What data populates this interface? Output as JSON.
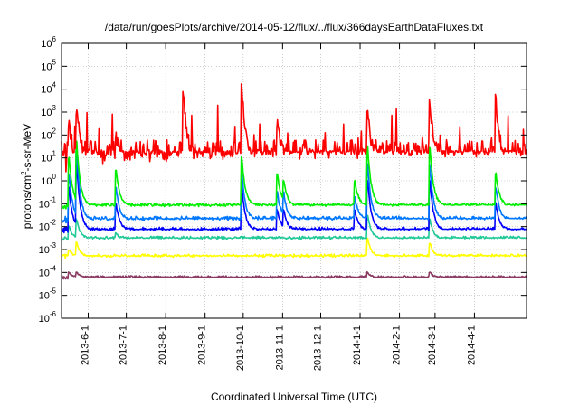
{
  "chart_data": {
    "type": "line",
    "title": "/data/run/goesPlots/archive/2014-05-12/flux/../flux/366daysEarthDataFluxes.txt",
    "xlabel": "Coordinated Universal Time (UTC)",
    "ylabel": {
      "prefix": "protons/cm",
      "sup": "2",
      "suffix": "-s-sr-MeV"
    },
    "x_range": [
      "2013-05-11",
      "2014-05-12"
    ],
    "x_ticks": [
      {
        "date": "2013-06-01",
        "label": "2013-6-1"
      },
      {
        "date": "2013-07-01",
        "label": "2013-7-1"
      },
      {
        "date": "2013-08-01",
        "label": "2013-8-1"
      },
      {
        "date": "2013-09-01",
        "label": "2013-9-1"
      },
      {
        "date": "2013-10-01",
        "label": "2013-10-1"
      },
      {
        "date": "2013-11-01",
        "label": "2013-11-1"
      },
      {
        "date": "2013-12-01",
        "label": "2013-12-1"
      },
      {
        "date": "2014-01-01",
        "label": "2014-1-1"
      },
      {
        "date": "2014-02-01",
        "label": "2014-2-1"
      },
      {
        "date": "2014-03-01",
        "label": "2014-3-1"
      },
      {
        "date": "2014-04-01",
        "label": "2014-4-1"
      }
    ],
    "y_scale": "log",
    "ylim": [
      1e-06,
      1000000.0
    ],
    "y_ticks": [
      {
        "value": 1e-06,
        "base": "10",
        "exp": "-6"
      },
      {
        "value": 1e-05,
        "base": "10",
        "exp": "-5"
      },
      {
        "value": 0.0001,
        "base": "10",
        "exp": "-4"
      },
      {
        "value": 0.001,
        "base": "10",
        "exp": "-3"
      },
      {
        "value": 0.01,
        "base": "10",
        "exp": "-2"
      },
      {
        "value": 0.1,
        "base": "10",
        "exp": "-1"
      },
      {
        "value": 1.0,
        "base": "10",
        "exp": "0"
      },
      {
        "value": 10.0,
        "base": "10",
        "exp": "1"
      },
      {
        "value": 100.0,
        "base": "10",
        "exp": "2"
      },
      {
        "value": 1000.0,
        "base": "10",
        "exp": "3"
      },
      {
        "value": 10000.0,
        "base": "10",
        "exp": "4"
      },
      {
        "value": 100000.0,
        "base": "10",
        "exp": "5"
      },
      {
        "value": 1000000.0,
        "base": "10",
        "exp": "6"
      }
    ],
    "grid": true,
    "series": [
      {
        "color": "#8b3a62",
        "baseline": 6e-05,
        "spread": 0.15,
        "events": [
          {
            "date": "2013-05-17",
            "peak": 0.0001
          },
          {
            "date": "2013-05-23",
            "peak": 0.0001
          },
          {
            "date": "2014-01-07",
            "peak": 0.0001
          },
          {
            "date": "2014-02-25",
            "peak": 0.0001
          }
        ]
      },
      {
        "color": "#ffff00",
        "baseline": 0.0005,
        "spread": 0.2,
        "events": [
          {
            "date": "2013-05-17",
            "peak": 0.001
          },
          {
            "date": "2013-05-23",
            "peak": 0.002
          },
          {
            "date": "2014-01-07",
            "peak": 0.003
          },
          {
            "date": "2014-02-25",
            "peak": 0.002
          }
        ]
      },
      {
        "color": "#20c997",
        "baseline": 0.003,
        "spread": 0.2,
        "events": [
          {
            "date": "2013-05-17",
            "peak": 0.01
          },
          {
            "date": "2013-05-23",
            "peak": 0.02
          },
          {
            "date": "2013-06-23",
            "peak": 0.005
          },
          {
            "date": "2014-01-07",
            "peak": 0.03
          },
          {
            "date": "2014-02-25",
            "peak": 0.02
          }
        ]
      },
      {
        "color": "#0000ff",
        "baseline": 0.007,
        "spread": 0.25,
        "events": [
          {
            "date": "2013-05-17",
            "peak": 0.5
          },
          {
            "date": "2013-05-23",
            "peak": 5
          },
          {
            "date": "2013-06-23",
            "peak": 0.1
          },
          {
            "date": "2013-09-30",
            "peak": 0.5
          },
          {
            "date": "2013-10-28",
            "peak": 0.05
          },
          {
            "date": "2013-11-02",
            "peak": 0.05
          },
          {
            "date": "2013-12-28",
            "peak": 0.05
          },
          {
            "date": "2014-01-07",
            "peak": 1
          },
          {
            "date": "2014-02-25",
            "peak": 1
          },
          {
            "date": "2014-04-18",
            "peak": 0.1
          }
        ]
      },
      {
        "color": "#0077ff",
        "baseline": 0.02,
        "spread": 0.3,
        "events": [
          {
            "date": "2013-05-17",
            "peak": 2
          },
          {
            "date": "2013-05-23",
            "peak": 20
          },
          {
            "date": "2013-06-23",
            "peak": 0.5
          },
          {
            "date": "2013-09-30",
            "peak": 2
          },
          {
            "date": "2013-10-28",
            "peak": 0.3
          },
          {
            "date": "2013-11-02",
            "peak": 0.3
          },
          {
            "date": "2013-12-28",
            "peak": 0.2
          },
          {
            "date": "2014-01-07",
            "peak": 5
          },
          {
            "date": "2014-02-25",
            "peak": 5
          },
          {
            "date": "2014-04-18",
            "peak": 0.5
          }
        ]
      },
      {
        "color": "#00ee00",
        "baseline": 0.08,
        "spread": 0.25,
        "events": [
          {
            "date": "2013-05-17",
            "peak": 10
          },
          {
            "date": "2013-05-23",
            "peak": 50
          },
          {
            "date": "2013-06-23",
            "peak": 3
          },
          {
            "date": "2013-09-30",
            "peak": 10
          },
          {
            "date": "2013-10-28",
            "peak": 2
          },
          {
            "date": "2013-11-02",
            "peak": 1
          },
          {
            "date": "2013-12-28",
            "peak": 1
          },
          {
            "date": "2014-01-07",
            "peak": 30
          },
          {
            "date": "2014-02-25",
            "peak": 30
          },
          {
            "date": "2014-04-18",
            "peak": 2
          }
        ]
      },
      {
        "color": "#ff0000",
        "baseline": 10,
        "spread": 1.6,
        "events": [
          {
            "date": "2013-05-17",
            "peak": 300
          },
          {
            "date": "2013-05-23",
            "peak": 1000
          },
          {
            "date": "2013-06-23",
            "peak": 100
          },
          {
            "date": "2013-08-15",
            "peak": 10000
          },
          {
            "date": "2013-09-30",
            "peak": 15000
          },
          {
            "date": "2013-10-28",
            "peak": 300
          },
          {
            "date": "2014-01-07",
            "peak": 1000
          },
          {
            "date": "2014-02-25",
            "peak": 3000
          },
          {
            "date": "2014-04-18",
            "peak": 3000
          }
        ]
      }
    ]
  }
}
